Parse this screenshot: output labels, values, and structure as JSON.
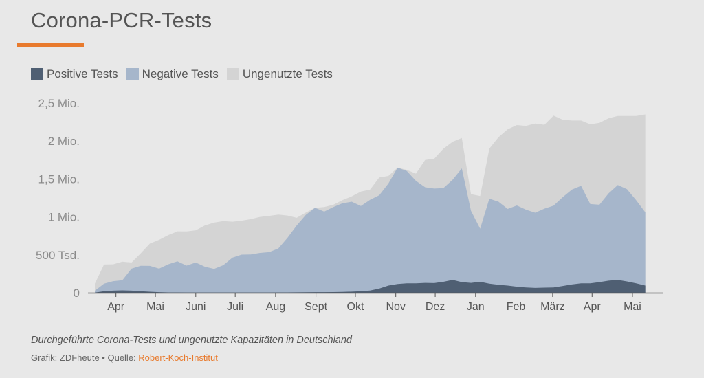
{
  "header": {
    "title": "Corona-PCR-Tests"
  },
  "colors": {
    "accent": "#e87a2d",
    "positive": "#4f5f73",
    "negative": "#a6b6cb",
    "unused": "#d4d4d4",
    "axis": "#555555",
    "tick_label": "#8a8a8a",
    "month_label": "#555555"
  },
  "chart_data": {
    "type": "area",
    "stacked": true,
    "legend": [
      "Positive Tests",
      "Negative Tests",
      "Ungenutzte Tests"
    ],
    "legend_placement": "top-left",
    "x_unit": "weeks since start of series (approx. mid-March 2020)",
    "y_ticks": [
      {
        "value": 0,
        "label": "0"
      },
      {
        "value": 500000,
        "label": "500 Tsd."
      },
      {
        "value": 1000000,
        "label": "1 Mio."
      },
      {
        "value": 1500000,
        "label": "1,5 Mio."
      },
      {
        "value": 2000000,
        "label": "2 Mio."
      },
      {
        "value": 2500000,
        "label": "2,5 Mio."
      }
    ],
    "ylim": [
      0,
      2500000
    ],
    "xlim": [
      0,
      61
    ],
    "x_ticks": [
      {
        "pos": 2.3,
        "label": "Apr"
      },
      {
        "pos": 6.6,
        "label": "Mai"
      },
      {
        "pos": 11.0,
        "label": "Juni"
      },
      {
        "pos": 15.3,
        "label": "Juli"
      },
      {
        "pos": 19.7,
        "label": "Aug"
      },
      {
        "pos": 24.1,
        "label": "Sept"
      },
      {
        "pos": 28.4,
        "label": "Okt"
      },
      {
        "pos": 32.8,
        "label": "Nov"
      },
      {
        "pos": 37.1,
        "label": "Dez"
      },
      {
        "pos": 41.5,
        "label": "Jan"
      },
      {
        "pos": 45.9,
        "label": "Feb"
      },
      {
        "pos": 49.9,
        "label": "März"
      },
      {
        "pos": 54.2,
        "label": "Apr"
      },
      {
        "pos": 58.6,
        "label": "Mai"
      }
    ],
    "grid": false,
    "series": [
      {
        "name": "Positive Tests",
        "values": [
          2000,
          20000,
          28000,
          32000,
          28000,
          20000,
          14000,
          8000,
          5000,
          4000,
          3000,
          3000,
          3000,
          3000,
          3000,
          3000,
          3000,
          3000,
          3000,
          3000,
          4000,
          5000,
          6000,
          7000,
          8000,
          8000,
          9000,
          11000,
          15000,
          20000,
          30000,
          55000,
          95000,
          115000,
          125000,
          125000,
          130000,
          128000,
          145000,
          170000,
          140000,
          130000,
          145000,
          120000,
          105000,
          95000,
          80000,
          70000,
          65000,
          68000,
          70000,
          90000,
          110000,
          125000,
          125000,
          140000,
          160000,
          170000,
          150000,
          125000,
          95000
        ]
      },
      {
        "name": "Negative Tests",
        "values": [
          25000,
          100000,
          125000,
          133000,
          290000,
          335000,
          340000,
          310000,
          370000,
          410000,
          355000,
          395000,
          340000,
          312000,
          360000,
          460000,
          500000,
          502000,
          522000,
          532000,
          580000,
          720000,
          880000,
          1020000,
          1112000,
          1062000,
          1121000,
          1169000,
          1185000,
          1124000,
          1195000,
          1230000,
          1345000,
          1535000,
          1480000,
          1350000,
          1260000,
          1245000,
          1235000,
          1320000,
          1500000,
          950000,
          700000,
          1120000,
          1095000,
          1010000,
          1070000,
          1025000,
          990000,
          1041000,
          1078000,
          1170000,
          1250000,
          1285000,
          1045000,
          1020000,
          1150000,
          1250000,
          1215000,
          1095000,
          965000
        ]
      },
      {
        "name": "Ungenutzte Tests",
        "values": [
          93000,
          252000,
          222000,
          245000,
          80000,
          165000,
          295000,
          380000,
          385000,
          395000,
          450000,
          425000,
          545000,
          610000,
          581000,
          473000,
          447000,
          465000,
          475000,
          478000,
          446000,
          293000,
          102000,
          30000,
          0,
          60000,
          30000,
          42000,
          70000,
          190000,
          135000,
          235000,
          100000,
          0,
          15000,
          95000,
          360000,
          395000,
          520000,
          500000,
          400000,
          220000,
          430000,
          660000,
          850000,
          1050000,
          1060000,
          1105000,
          1175000,
          1105000,
          1187000,
          1020000,
          910000,
          860000,
          1050000,
          1080000,
          990000,
          910000,
          965000,
          1110000,
          1290000
        ]
      }
    ]
  },
  "footer": {
    "caption": "Durchgeführte Corona-Tests und ungenutzte Kapazitäten in Deutschland",
    "credit_prefix": "Grafik: ZDFheute • Quelle: ",
    "source_link": "Robert-Koch-Institut"
  }
}
